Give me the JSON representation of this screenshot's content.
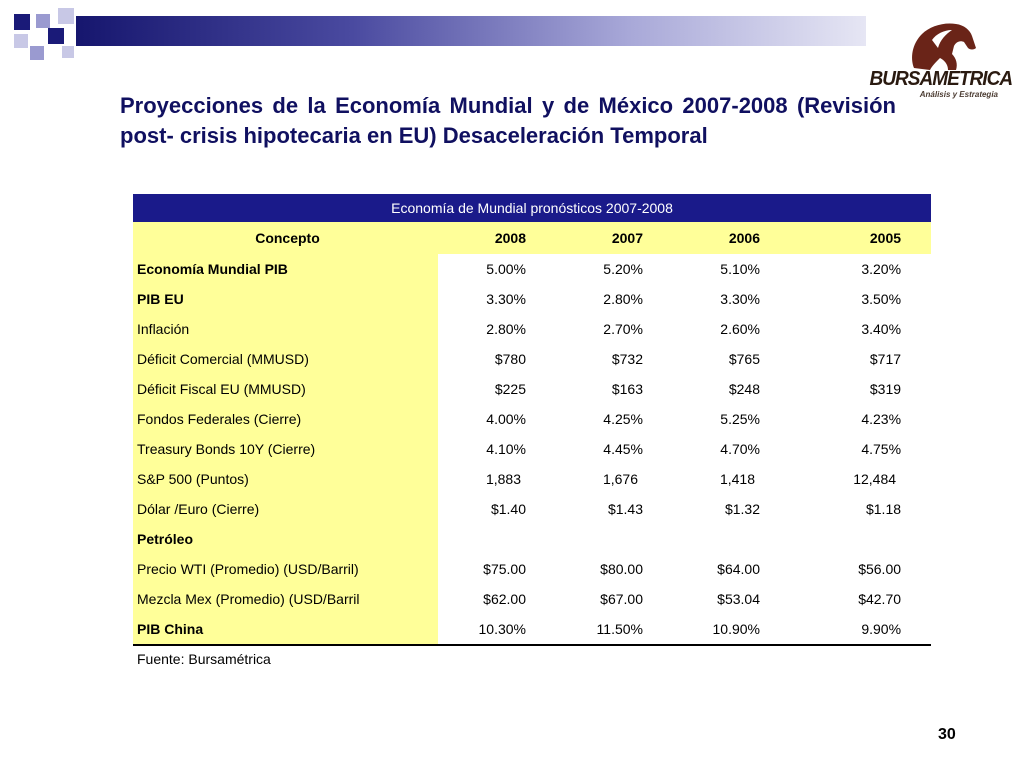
{
  "title": "Proyecciones de la Economía Mundial y de México 2007-2008 (Revisión post- crisis hipotecaria en EU) Desaceleración Temporal",
  "logo": {
    "name": "BURSAMETRICA",
    "tagline": "Análisis y Estrategia"
  },
  "table": {
    "caption": "Economía de Mundial pronósticos 2007-2008",
    "concept_header": "Concepto",
    "year_headers": [
      "2008",
      "2007",
      "2006",
      "2005"
    ],
    "rows": [
      {
        "label": "Economía Mundial PIB",
        "bold": true,
        "values": [
          "5.00%",
          "5.20%",
          "5.10%",
          "3.20%"
        ]
      },
      {
        "label": "PIB EU",
        "bold": true,
        "values": [
          "3.30%",
          "2.80%",
          "3.30%",
          "3.50%"
        ]
      },
      {
        "label": "Inflación",
        "bold": false,
        "values": [
          "2.80%",
          "2.70%",
          "2.60%",
          "3.40%"
        ]
      },
      {
        "label": "Déficit  Comercial (MMUSD)",
        "bold": false,
        "values": [
          "$780",
          "$732",
          "$765",
          "$717"
        ]
      },
      {
        "label": "Déficit Fiscal EU (MMUSD)",
        "bold": false,
        "values": [
          "$225",
          "$163",
          "$248",
          "$319"
        ]
      },
      {
        "label": "Fondos Federales (Cierre)",
        "bold": false,
        "values": [
          "4.00%",
          "4.25%",
          "5.25%",
          "4.23%"
        ]
      },
      {
        "label": "Treasury Bonds 10Y (Cierre)",
        "bold": false,
        "values": [
          "4.10%",
          "4.45%",
          "4.70%",
          "4.75%"
        ]
      },
      {
        "label": "S&P 500 (Puntos)",
        "bold": false,
        "raw": true,
        "values": [
          "1,883",
          "1,676",
          "1,418",
          "12,484"
        ]
      },
      {
        "label": "Dólar /Euro (Cierre)",
        "bold": false,
        "values": [
          "$1.40",
          "$1.43",
          "$1.32",
          "$1.18"
        ]
      },
      {
        "label": "Petróleo",
        "bold": true,
        "values": [
          "",
          "",
          "",
          ""
        ]
      },
      {
        "label": "Precio WTI (Promedio) (USD/Barril)",
        "bold": false,
        "values": [
          "$75.00",
          "$80.00",
          "$64.00",
          "$56.00"
        ]
      },
      {
        "label": "Mezcla Mex (Promedio) (USD/Barril",
        "bold": false,
        "values": [
          "$62.00",
          "$67.00",
          "$53.04",
          "$42.70"
        ]
      },
      {
        "label": "PIB China",
        "bold": true,
        "values": [
          "10.30%",
          "11.50%",
          "10.90%",
          "9.90%"
        ]
      }
    ]
  },
  "source": "Fuente: Bursamétrica",
  "page_number": "30",
  "colors": {
    "title": "#101060",
    "table_header_bg": "#1a1a8a",
    "label_bg": "#ffff99"
  }
}
